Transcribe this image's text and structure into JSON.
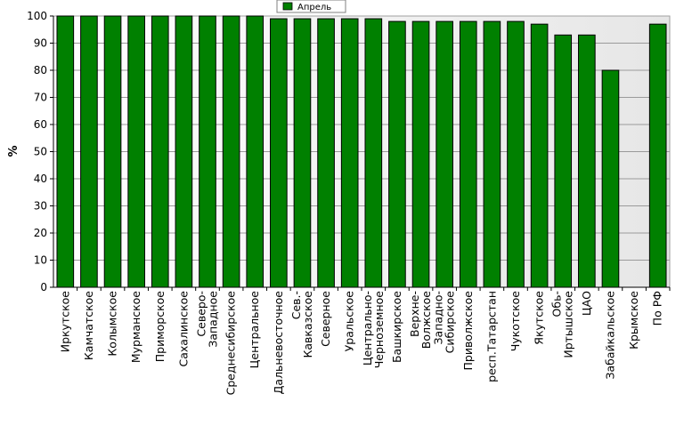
{
  "chart_data": {
    "type": "bar",
    "categories": [
      [
        "Иркутское"
      ],
      [
        "Камчатское"
      ],
      [
        "Колымское"
      ],
      [
        "Мурманское"
      ],
      [
        "Приморское"
      ],
      [
        "Сахалинское"
      ],
      [
        "Северо-",
        "Западное"
      ],
      [
        "Среднесибирское"
      ],
      [
        "Центральное"
      ],
      [
        "Дальневосточное"
      ],
      [
        "Сев.-",
        "Кавказское"
      ],
      [
        "Северное"
      ],
      [
        "Уральское"
      ],
      [
        "Центрально-",
        "Черноземное"
      ],
      [
        "Башкирское"
      ],
      [
        "Верхне-",
        "Волжское"
      ],
      [
        "Западно-",
        "Сибирское"
      ],
      [
        "Приволжское"
      ],
      [
        "респ.Татарстан"
      ],
      [
        "Чукотское"
      ],
      [
        "Якутское"
      ],
      [
        "Обь-",
        "Иртышское"
      ],
      [
        "ЦАО"
      ],
      [
        "Забайкальское"
      ],
      [
        "Крымское"
      ],
      [
        "По РФ"
      ]
    ],
    "series": [
      {
        "name": "Апрель",
        "color": "#008000",
        "values": [
          100,
          100,
          100,
          100,
          100,
          100,
          100,
          100,
          100,
          99,
          99,
          99,
          99,
          99,
          98,
          98,
          98,
          98,
          98,
          98,
          97,
          93,
          93,
          80,
          null,
          97
        ]
      }
    ],
    "title": "",
    "xlabel": "",
    "ylabel": "%",
    "ylim": [
      0,
      100
    ],
    "yticks": [
      0,
      10,
      20,
      30,
      40,
      50,
      60,
      70,
      80,
      90,
      100
    ],
    "grid": true,
    "legend_position": "top-center"
  }
}
